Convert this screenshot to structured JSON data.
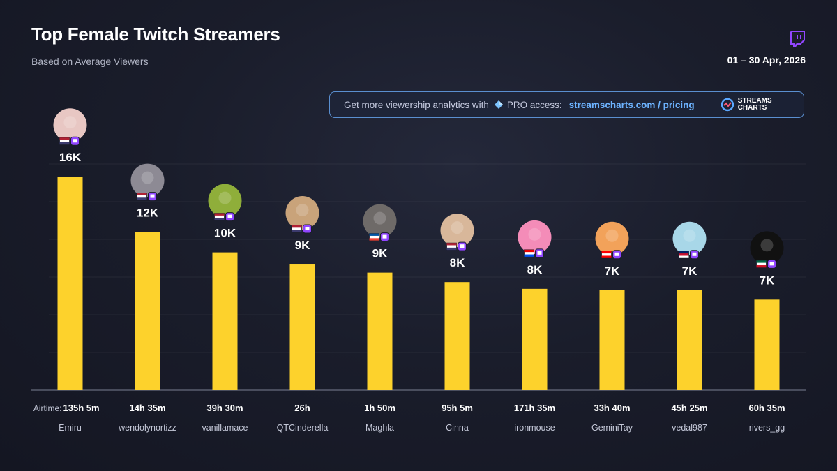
{
  "header": {
    "title": "Top Female Twitch Streamers",
    "subtitle": "Based on Average Viewers",
    "date_range": "01 – 30 Apr, 2026",
    "logo_icon": "twitch-icon"
  },
  "promo": {
    "text_before": "Get more viewership analytics with",
    "pro_label": "PRO access:",
    "link_text": "streamscharts.com / pricing",
    "brand_line1": "STREAMS",
    "brand_line2": "CHARTS"
  },
  "colors": {
    "bar": "#fdd22c",
    "accent": "#6db3ff",
    "twitch": "#9146ff"
  },
  "chart_data": {
    "type": "bar",
    "title": "Top Female Twitch Streamers",
    "subtitle": "Based on Average Viewers",
    "airtime_prefix": "Airtime:",
    "ylim": [
      0,
      17000
    ],
    "grid": true,
    "categories": [
      "Emiru",
      "wendolynortizz",
      "vanillamace",
      "QTCinderella",
      "Maghla",
      "Cinna",
      "ironmouse",
      "GeminiTay",
      "vedal987",
      "rivers_gg"
    ],
    "values": [
      15800,
      11700,
      10200,
      9300,
      8700,
      8000,
      7500,
      7400,
      7400,
      6700
    ],
    "value_labels": [
      "16K",
      "12K",
      "10K",
      "9K",
      "9K",
      "8K",
      "8K",
      "7K",
      "7K",
      "7K"
    ],
    "airtime": [
      "135h 5m",
      "14h 35m",
      "39h 30m",
      "26h",
      "1h 50m",
      "95h 5m",
      "171h 35m",
      "33h 40m",
      "45h 25m",
      "60h 35m"
    ],
    "flags": [
      "us-flag-icon",
      "us-flag-icon",
      "us-flag-icon",
      "us-flag-icon",
      "fr-flag-icon",
      "us-flag-icon",
      "pr-flag-icon",
      "ca-flag-icon",
      "gb-flag-icon",
      "mx-flag-icon"
    ]
  }
}
